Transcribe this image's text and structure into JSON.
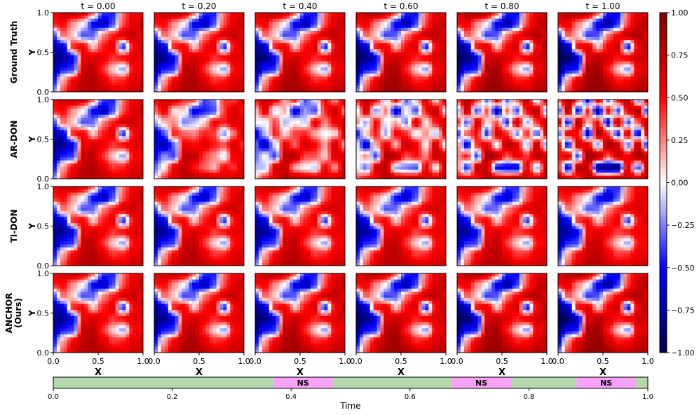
{
  "chart_data": {
    "type": "heatmap",
    "columns": [
      "t = 0.00",
      "t = 0.20",
      "t = 0.40",
      "t = 0.60",
      "t = 0.80",
      "t = 1.00"
    ],
    "rows": [
      "Ground Truth",
      "AR-DON",
      "TI-DON",
      "ANCHOR\n(Ours)"
    ],
    "xlabel": "X",
    "ylabel": "Y",
    "xlim": [
      0,
      1
    ],
    "ylim": [
      0,
      1
    ],
    "x_ticks": [
      "0.0",
      "0.5",
      "1.0"
    ],
    "y_ticks": [
      "0.0",
      "0.5",
      "1.0"
    ],
    "colorbar": {
      "range": [
        -1,
        1
      ],
      "ticks": [
        "1.00",
        "0.75",
        "0.50",
        "0.25",
        "0.00",
        "−0.25",
        "−0.50",
        "−0.75",
        "−1.00"
      ],
      "colors": {
        "low": "#00004c",
        "mid_low": "#0000ff",
        "mid": "#ffffff",
        "mid_high": "#ff0000",
        "high": "#7f0000"
      }
    },
    "fields": {
      "base": [
        [
          0.55,
          0.7,
          0.75,
          0.65,
          0.3,
          -0.4,
          -0.45,
          0.3,
          0.55,
          0.6
        ],
        [
          0.45,
          0.5,
          0.2,
          0.0,
          -0.5,
          -0.7,
          -0.35,
          0.35,
          0.6,
          0.7
        ],
        [
          -0.4,
          0.3,
          0.1,
          -0.35,
          -0.3,
          0.25,
          0.45,
          0.65,
          0.7,
          0.55
        ],
        [
          -0.75,
          -0.6,
          0.45,
          0.55,
          0.1,
          0.45,
          0.6,
          -0.45,
          0.5,
          0.7
        ],
        [
          -0.85,
          -0.8,
          -0.55,
          0.55,
          0.65,
          0.55,
          0.4,
          0.5,
          0.6,
          0.6
        ],
        [
          -0.8,
          -0.45,
          -0.4,
          0.7,
          0.75,
          0.4,
          0.1,
          -0.2,
          0.5,
          0.55
        ],
        [
          -0.5,
          0.2,
          0.55,
          0.75,
          0.8,
          0.6,
          0.4,
          0.45,
          0.6,
          0.65
        ],
        [
          -0.25,
          0.35,
          0.65,
          0.8,
          0.8,
          0.75,
          0.65,
          0.6,
          0.7,
          0.7
        ]
      ],
      "sharp": [
        [
          0.3,
          0.85,
          0.3,
          -0.7,
          0.8,
          -0.3,
          0.6,
          0.9,
          -0.4,
          0.8
        ],
        [
          -0.5,
          0.8,
          -0.6,
          0.5,
          -0.8,
          0.7,
          -0.4,
          0.6,
          0.9,
          -0.6
        ],
        [
          0.8,
          -0.6,
          0.9,
          0.2,
          0.6,
          -0.7,
          0.85,
          -0.5,
          0.3,
          0.8
        ],
        [
          -0.3,
          0.7,
          0.5,
          -0.8,
          0.9,
          0.4,
          -0.6,
          0.8,
          -0.7,
          0.6
        ],
        [
          0.7,
          -0.5,
          0.8,
          0.6,
          -0.3,
          0.9,
          0.7,
          -0.4,
          0.8,
          -0.6
        ],
        [
          0.6,
          0.8,
          -0.4,
          0.9,
          0.8,
          0.3,
          0.8,
          0.6,
          0.9,
          0.7
        ],
        [
          0.5,
          -0.7,
          0.8,
          0.7,
          -1.0,
          -1.0,
          -1.0,
          0.7,
          -0.5,
          0.8
        ],
        [
          0.8,
          0.6,
          0.4,
          0.8,
          0.7,
          0.6,
          0.8,
          0.7,
          0.6,
          0.8
        ]
      ]
    },
    "timeline": {
      "xlabel": "Time",
      "ticks": [
        "0.0",
        "0.2",
        "0.4",
        "0.6",
        "0.8",
        "1.0"
      ],
      "segments": [
        {
          "start": 0.0,
          "end": 0.37,
          "label": "",
          "color": "#b5d9ad"
        },
        {
          "start": 0.37,
          "end": 0.47,
          "label": "NS",
          "color": "#f7a1f7"
        },
        {
          "start": 0.47,
          "end": 0.67,
          "label": "",
          "color": "#b5d9ad"
        },
        {
          "start": 0.67,
          "end": 0.77,
          "label": "NS",
          "color": "#f7a1f7"
        },
        {
          "start": 0.77,
          "end": 0.88,
          "label": "",
          "color": "#b5d9ad"
        },
        {
          "start": 0.88,
          "end": 0.98,
          "label": "NS",
          "color": "#f7a1f7"
        },
        {
          "start": 0.98,
          "end": 1.0,
          "label": "",
          "color": "#b5d9ad"
        }
      ]
    }
  }
}
